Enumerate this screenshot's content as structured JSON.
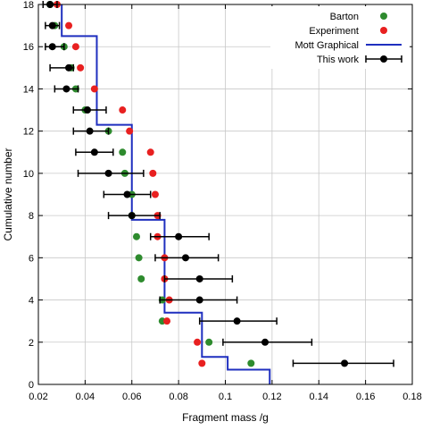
{
  "chart_data": {
    "type": "scatter",
    "xlabel": "Fragment mass /g",
    "ylabel": "Cumulative number",
    "xlim": [
      0.02,
      0.18
    ],
    "ylim": [
      0,
      18
    ],
    "grid": true,
    "legend_position": "top-right",
    "x_tick_labels": [
      "0.02",
      "0.04",
      "0.06",
      "0.08",
      "0.1",
      "0.12",
      "0.14",
      "0.16",
      "0.18"
    ],
    "y_tick_labels": [
      "0",
      "2",
      "4",
      "6",
      "8",
      "10",
      "12",
      "14",
      "16",
      "18"
    ],
    "series": [
      {
        "name": "Barton",
        "kind": "points",
        "color": "#2e8b2e",
        "points": [
          [
            0.111,
            1
          ],
          [
            0.093,
            2
          ],
          [
            0.073,
            3
          ],
          [
            0.073,
            4
          ],
          [
            0.064,
            5
          ],
          [
            0.063,
            6
          ],
          [
            0.062,
            7
          ],
          [
            0.06,
            8
          ],
          [
            0.06,
            9
          ],
          [
            0.057,
            10
          ],
          [
            0.056,
            11
          ],
          [
            0.05,
            12
          ],
          [
            0.04,
            13
          ],
          [
            0.036,
            14
          ],
          [
            0.034,
            15
          ],
          [
            0.031,
            16
          ],
          [
            0.027,
            17
          ],
          [
            0.025,
            18
          ]
        ]
      },
      {
        "name": "Experiment",
        "kind": "points",
        "color": "#e82020",
        "points": [
          [
            0.09,
            1
          ],
          [
            0.088,
            2
          ],
          [
            0.075,
            3
          ],
          [
            0.076,
            4
          ],
          [
            0.074,
            5
          ],
          [
            0.074,
            6
          ],
          [
            0.071,
            7
          ],
          [
            0.071,
            8
          ],
          [
            0.07,
            9
          ],
          [
            0.069,
            10
          ],
          [
            0.068,
            11
          ],
          [
            0.059,
            12
          ],
          [
            0.056,
            13
          ],
          [
            0.044,
            14
          ],
          [
            0.038,
            15
          ],
          [
            0.036,
            16
          ],
          [
            0.033,
            17
          ],
          [
            0.028,
            18
          ]
        ]
      },
      {
        "name": "Mott Graphical",
        "kind": "step",
        "color": "#1f2fbf",
        "points": [
          [
            0.119,
            0
          ],
          [
            0.119,
            0.7
          ],
          [
            0.101,
            0.7
          ],
          [
            0.101,
            1.3
          ],
          [
            0.09,
            1.3
          ],
          [
            0.09,
            3.4
          ],
          [
            0.074,
            3.4
          ],
          [
            0.074,
            7.8
          ],
          [
            0.06,
            7.8
          ],
          [
            0.06,
            12.3
          ],
          [
            0.045,
            12.3
          ],
          [
            0.045,
            16.5
          ],
          [
            0.03,
            16.5
          ],
          [
            0.03,
            18
          ]
        ]
      },
      {
        "name": "This work",
        "kind": "errorbars",
        "color": "#000000",
        "points": [
          [
            0.151,
            1,
            0.129,
            0.172
          ],
          [
            0.117,
            2,
            0.099,
            0.137
          ],
          [
            0.105,
            3,
            0.089,
            0.122
          ],
          [
            0.089,
            4,
            0.072,
            0.105
          ],
          [
            0.089,
            5,
            0.074,
            0.103
          ],
          [
            0.083,
            6,
            0.07,
            0.097
          ],
          [
            0.08,
            7,
            0.068,
            0.093
          ],
          [
            0.06,
            8,
            0.05,
            0.072
          ],
          [
            0.058,
            9,
            0.048,
            0.068
          ],
          [
            0.05,
            10,
            0.037,
            0.065
          ],
          [
            0.044,
            11,
            0.036,
            0.052
          ],
          [
            0.042,
            12,
            0.035,
            0.05
          ],
          [
            0.041,
            13,
            0.035,
            0.049
          ],
          [
            0.032,
            14,
            0.027,
            0.037
          ],
          [
            0.033,
            15,
            0.025,
            0.035
          ],
          [
            0.026,
            16,
            0.023,
            0.031
          ],
          [
            0.026,
            17,
            0.023,
            0.029
          ],
          [
            0.025,
            18,
            0.022,
            0.028
          ]
        ]
      }
    ]
  }
}
